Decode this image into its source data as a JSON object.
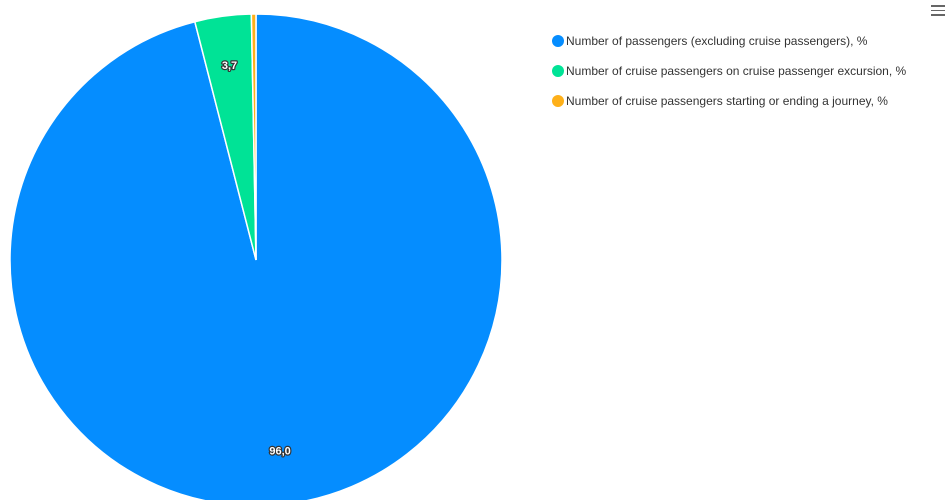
{
  "chart_data": {
    "type": "pie",
    "title": "",
    "slices": [
      {
        "name": "Number of passengers (excluding cruise passengers), %",
        "value": 96.0,
        "label": "96,0",
        "color": "#058DFF"
      },
      {
        "name": "Number of cruise passengers on cruise passenger excursion, %",
        "value": 3.7,
        "label": "3,7",
        "color": "#00E396"
      },
      {
        "name": "Number of cruise passengers starting or ending a journey, %",
        "value": 0.3,
        "label": "",
        "color": "#FEB019"
      }
    ],
    "legend_position": "top-right"
  },
  "menu": {
    "icon": "hamburger-menu-icon"
  }
}
